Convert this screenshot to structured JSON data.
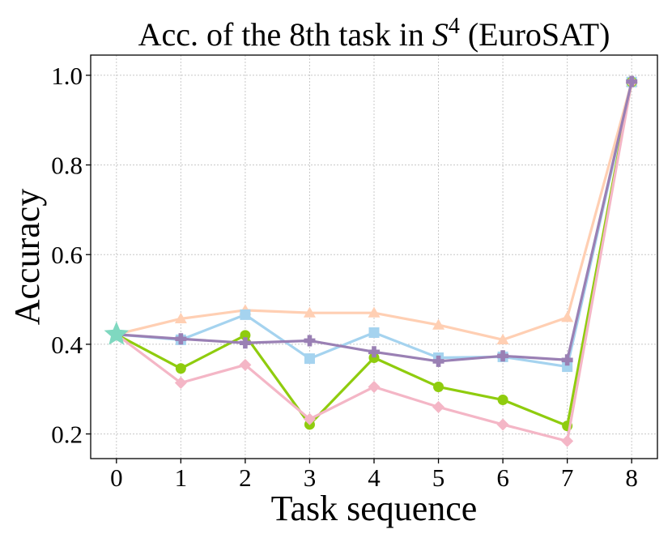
{
  "chart_data": {
    "type": "line",
    "title_prefix": "Acc. of the 8th task in ",
    "title_symbol": "S",
    "title_sup": "4",
    "title_suffix": " (EuroSAT)",
    "xlabel": "Task sequence",
    "ylabel": "Accuracy",
    "x": [
      0,
      1,
      2,
      3,
      4,
      5,
      6,
      7,
      8
    ],
    "xlim": [
      -0.4,
      8.4
    ],
    "ylim": [
      0.145,
      1.045
    ],
    "yticks": [
      0.2,
      0.4,
      0.6,
      0.8,
      1.0
    ],
    "ytick_labels": [
      "0.2",
      "0.4",
      "0.6",
      "0.8",
      "1.0"
    ],
    "xtick_labels": [
      "0",
      "1",
      "2",
      "3",
      "4",
      "5",
      "6",
      "7",
      "8"
    ],
    "grid": true,
    "start_point": {
      "x": 0,
      "y": 0.422,
      "marker": "star",
      "color": "#7fd8c0"
    },
    "series": [
      {
        "color": "#ffcfb3",
        "marker": "triangle",
        "values": [
          0.422,
          0.457,
          0.476,
          0.47,
          0.47,
          0.443,
          0.41,
          0.46,
          0.985
        ]
      },
      {
        "color": "#a5d3ef",
        "marker": "square",
        "values": [
          0.422,
          0.41,
          0.466,
          0.368,
          0.426,
          0.37,
          0.372,
          0.35,
          0.985
        ]
      },
      {
        "color": "#8fcc0e",
        "marker": "circle",
        "values": [
          0.422,
          0.346,
          0.42,
          0.221,
          0.37,
          0.305,
          0.276,
          0.218,
          0.985
        ]
      },
      {
        "color": "#f4b6c6",
        "marker": "diamond",
        "values": [
          0.422,
          0.314,
          0.354,
          0.233,
          0.305,
          0.26,
          0.221,
          0.184,
          0.985
        ]
      },
      {
        "color": "#9a80b4",
        "marker": "plus",
        "values": [
          0.422,
          0.412,
          0.403,
          0.408,
          0.383,
          0.362,
          0.374,
          0.365,
          0.986
        ]
      }
    ]
  }
}
